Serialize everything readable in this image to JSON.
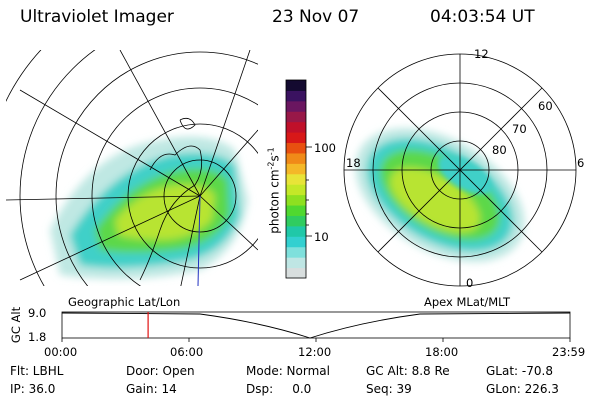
{
  "header": {
    "instrument": "Ultraviolet Imager",
    "date": "23 Nov 07",
    "time": "04:03:54 UT"
  },
  "left_panel": {
    "caption": "Geographic Lat/Lon"
  },
  "right_panel": {
    "caption": "Apex MLat/MLT",
    "mlt_labels": [
      "12",
      "18",
      "6",
      "0"
    ],
    "lat_labels": [
      "60",
      "70",
      "80"
    ]
  },
  "colorbar": {
    "unit_label": "photon cm",
    "unit_exp1": "-2",
    "unit_s": "s",
    "unit_exp2": "-1",
    "tick_labels": [
      "100",
      "10"
    ],
    "colors": [
      "#d8dede",
      "#bfe6e4",
      "#7fe0dc",
      "#33d0d0",
      "#20c8a8",
      "#30cc60",
      "#50d830",
      "#8ee020",
      "#c4e828",
      "#e8e438",
      "#f4b828",
      "#f08a18",
      "#e85010",
      "#d81818",
      "#c0102a",
      "#981848",
      "#6a1660",
      "#3a1260",
      "#140a30"
    ]
  },
  "timeline": {
    "axis_label": "GC Alt",
    "y_ticks": [
      "9.0",
      "1.8"
    ],
    "x_ticks": [
      "00:00",
      "06:00",
      "12:00",
      "18:00",
      "23:59"
    ],
    "current_time_fraction": 0.1694
  },
  "info": {
    "filter": "Flt: LBHL",
    "ip": "IP: 36.0",
    "door": "Door: Open",
    "gain": "Gain: 14",
    "mode": "Mode: Normal",
    "dsp": "Dsp:     0.0",
    "gc_alt": "GC Alt: 8.8 Re",
    "seq": "Seq: 39",
    "glat": "GLat: -70.8",
    "glon": "GLon: 226.3"
  }
}
